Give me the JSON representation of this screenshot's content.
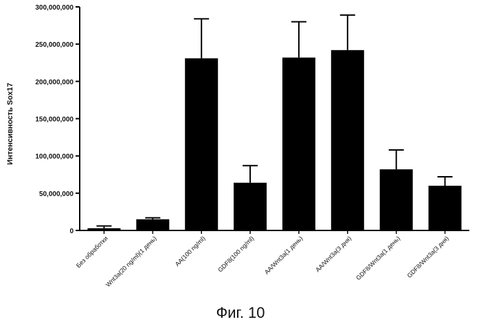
{
  "chart_data": {
    "type": "bar",
    "title": "",
    "xlabel": "",
    "ylabel": "Интенсивность Sox17",
    "ylim": [
      0,
      300000000
    ],
    "yticks": [
      0,
      50000000,
      100000000,
      150000000,
      200000000,
      250000000,
      300000000
    ],
    "ytick_labels": [
      "0",
      "50,000,000",
      "100,000,000",
      "150,000,000",
      "200,000,000",
      "250,000,000",
      "300,000,000"
    ],
    "categories": [
      "Без обработки",
      "Wnt3a(20 ng/ml)(1 день)",
      "AA(100 ng/ml)",
      "GDF8(100 ng/ml)",
      "AA/Wnt3a(1 день)",
      "AA/Wnt3a(3 дня)",
      "GDF8/Wnt3a(1 день)",
      "GDF8/Wnt3a(3 дня)"
    ],
    "values": [
      3000000,
      15000000,
      231000000,
      64000000,
      232000000,
      242000000,
      82000000,
      60000000
    ],
    "errors": [
      3000000,
      2000000,
      53000000,
      23000000,
      48000000,
      47000000,
      26000000,
      12000000
    ],
    "bar_color": "#000000",
    "grid": false
  },
  "caption": "Фиг. 10"
}
